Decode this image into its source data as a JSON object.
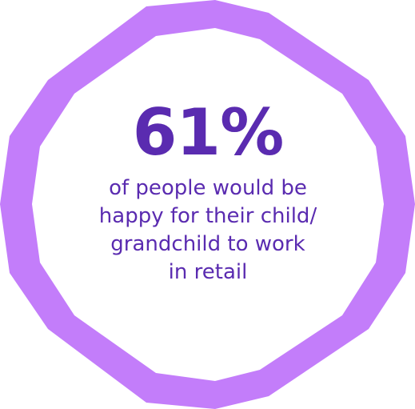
{
  "colors": {
    "frame": "#C37DFA",
    "text": "#5A2BB0",
    "background": "#FFFFFF"
  },
  "shape": "octagon",
  "stat": {
    "value": "61%"
  },
  "caption": {
    "lines": [
      "of people would be",
      "happy for their child/",
      "grandchild to work",
      "in retail"
    ]
  }
}
